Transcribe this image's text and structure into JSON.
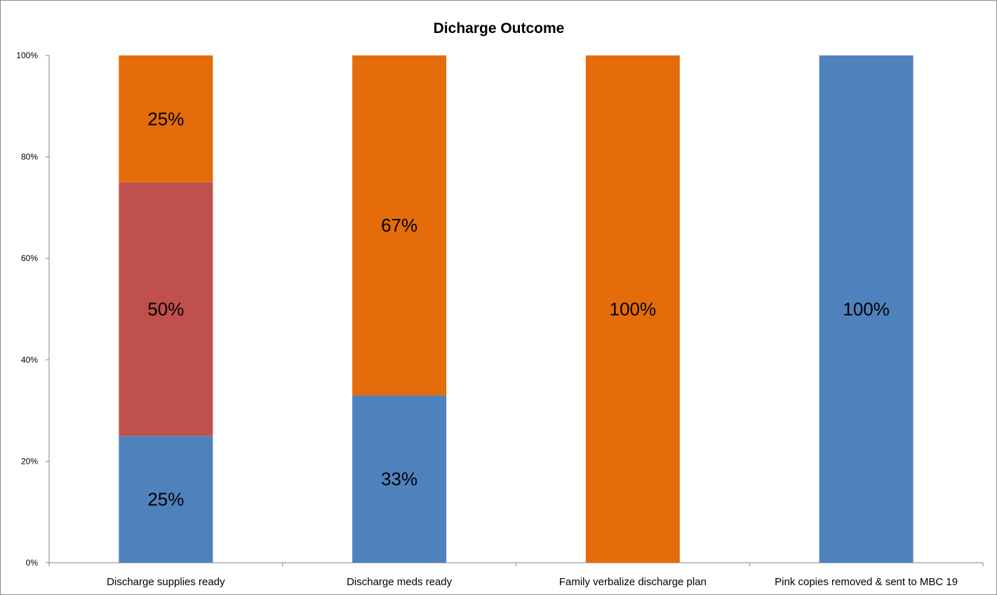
{
  "chart_data": {
    "type": "bar",
    "stacked": true,
    "percent_stacked": true,
    "title": "Dicharge Outcome",
    "xlabel": "",
    "ylabel": "",
    "ylim": [
      0,
      100
    ],
    "y_ticks": [
      "0%",
      "20%",
      "40%",
      "60%",
      "80%",
      "100%"
    ],
    "grid": false,
    "legend": "none",
    "categories": [
      "Discharge supplies ready",
      "Discharge meds ready",
      "Family verbalize discharge plan",
      "Pink copies removed & sent to MBC 19"
    ],
    "series": [
      {
        "color": "#4f81bd",
        "values": [
          25,
          33,
          0,
          100
        ],
        "labels": [
          "25%",
          "33%",
          "",
          "100%"
        ]
      },
      {
        "color": "#c0504d",
        "values": [
          50,
          0,
          0,
          0
        ],
        "labels": [
          "50%",
          "",
          "",
          ""
        ]
      },
      {
        "color": "#e46c0a",
        "values": [
          25,
          67,
          100,
          0
        ],
        "labels": [
          "25%",
          "67%",
          "100%",
          ""
        ]
      }
    ]
  }
}
